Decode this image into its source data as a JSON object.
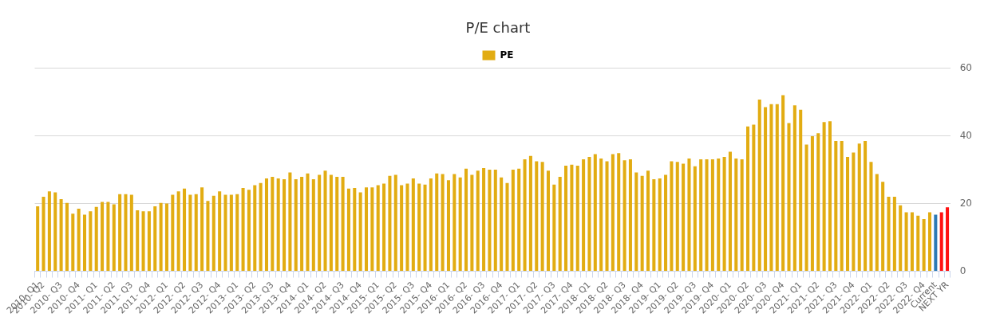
{
  "chart_data": {
    "type": "bar",
    "title": "P/E chart",
    "categories": [
      "2010- Q1",
      "2010- Q2",
      null,
      null,
      "2010- Q3",
      null,
      null,
      "2010- Q4",
      null,
      null,
      "2011- Q1",
      null,
      null,
      "2011- Q2",
      null,
      null,
      "2011- Q3",
      null,
      null,
      "2011- Q4",
      null,
      null,
      "2012- Q1",
      null,
      null,
      "2012- Q2",
      null,
      null,
      "2012- Q3",
      null,
      null,
      "2012- Q4",
      null,
      null,
      "2013- Q1",
      null,
      null,
      "2013- Q2",
      null,
      null,
      "2013- Q3",
      null,
      null,
      "2013- Q4",
      null,
      null,
      "2014- Q1",
      null,
      null,
      "2014- Q2",
      null,
      null,
      "2014- Q3",
      null,
      null,
      "2014- Q4",
      null,
      null,
      "2015- Q1",
      null,
      null,
      "2015- Q2",
      null,
      null,
      "2015- Q3",
      null,
      null,
      "2015- Q4",
      null,
      null,
      "2016- Q1",
      null,
      null,
      "2016- Q2",
      null,
      null,
      "2016- Q3",
      null,
      null,
      "2016- Q4",
      null,
      null,
      "2017- Q1",
      null,
      null,
      "2017- Q2",
      null,
      null,
      "2017- Q3",
      null,
      null,
      "2017- Q4",
      null,
      null,
      "2018- Q1",
      null,
      null,
      "2018- Q2",
      null,
      null,
      "2018- Q3",
      null,
      null,
      "2018- Q4",
      null,
      null,
      "2019- Q1",
      null,
      null,
      "2019- Q2",
      null,
      null,
      "2019- Q3",
      null,
      null,
      "2019- Q4",
      null,
      null,
      "2020- Q1",
      null,
      null,
      "2020- Q2",
      null,
      null,
      "2020- Q3",
      null,
      null,
      "2020- Q4",
      null,
      null,
      "2021- Q1",
      null,
      null,
      "2021- Q2",
      null,
      null,
      "2021- Q3",
      null,
      null,
      "2021- Q4",
      null,
      null,
      "2022- Q1",
      null,
      null,
      "2022- Q2",
      null,
      null,
      "2022- Q3",
      null,
      null,
      "2022- Q4",
      null,
      "Current",
      null,
      "NEXT YR"
    ],
    "series": [
      {
        "name": "PE",
        "color": "#e2ac12",
        "values": [
          19.2,
          22.0,
          23.6,
          23.3,
          21.3,
          20.2,
          17.0,
          18.5,
          16.7,
          17.7,
          19.0,
          20.5,
          20.5,
          19.8,
          22.8,
          22.8,
          22.6,
          18.0,
          17.7,
          17.7,
          19.2,
          20.2,
          20.0,
          22.6,
          23.6,
          24.4,
          22.6,
          22.8,
          24.8,
          20.8,
          22.3,
          23.6,
          22.6,
          22.6,
          22.8,
          24.6,
          24.1,
          25.4,
          26.1,
          27.4,
          27.9,
          27.4,
          27.2,
          29.2,
          27.2,
          27.9,
          28.9,
          27.2,
          28.5,
          29.7,
          28.5,
          27.9,
          27.9,
          24.4,
          24.6,
          23.3,
          24.8,
          24.8,
          25.4,
          25.9,
          28.2,
          28.5,
          25.4,
          25.9,
          27.4,
          25.9,
          25.6,
          27.4,
          28.9,
          28.7,
          26.9,
          28.7,
          27.7,
          30.3,
          28.5,
          29.7,
          30.5,
          30.0,
          30.0,
          27.7,
          26.1,
          30.0,
          30.3,
          33.1,
          34.1,
          32.5,
          32.3,
          29.7,
          25.6,
          27.9,
          31.2,
          31.5,
          31.2,
          33.1,
          33.8,
          34.6,
          33.3,
          32.5,
          34.6,
          34.9,
          32.8,
          33.1,
          29.2,
          28.2,
          29.7,
          27.2,
          27.4,
          28.5,
          32.5,
          32.3,
          31.8,
          33.3,
          31.0,
          33.1,
          33.1,
          33.1,
          33.3,
          33.8,
          35.3,
          33.3,
          33.1,
          42.8,
          43.3,
          50.7,
          48.5,
          49.4,
          49.4,
          52.0,
          43.8,
          49.0,
          47.7,
          37.4,
          39.9,
          40.8,
          44.1,
          44.3,
          38.5,
          38.5,
          33.8,
          35.1,
          37.7,
          38.5,
          32.3,
          28.7,
          26.4,
          22.0,
          22.0,
          19.5,
          17.4,
          17.4,
          16.4,
          15.4,
          17.4,
          16.7,
          17.4,
          18.9
        ],
        "colors": [
          "#e2ac12",
          "#e2ac12",
          "#e2ac12",
          "#e2ac12",
          "#e2ac12",
          "#e2ac12",
          "#e2ac12",
          "#e2ac12",
          "#e2ac12",
          "#e2ac12",
          "#e2ac12",
          "#e2ac12",
          "#e2ac12",
          "#e2ac12",
          "#e2ac12",
          "#e2ac12",
          "#e2ac12",
          "#e2ac12",
          "#e2ac12",
          "#e2ac12",
          "#e2ac12",
          "#e2ac12",
          "#e2ac12",
          "#e2ac12",
          "#e2ac12",
          "#e2ac12",
          "#e2ac12",
          "#e2ac12",
          "#e2ac12",
          "#e2ac12",
          "#e2ac12",
          "#e2ac12",
          "#e2ac12",
          "#e2ac12",
          "#e2ac12",
          "#e2ac12",
          "#e2ac12",
          "#e2ac12",
          "#e2ac12",
          "#e2ac12",
          "#e2ac12",
          "#e2ac12",
          "#e2ac12",
          "#e2ac12",
          "#e2ac12",
          "#e2ac12",
          "#e2ac12",
          "#e2ac12",
          "#e2ac12",
          "#e2ac12",
          "#e2ac12",
          "#e2ac12",
          "#e2ac12",
          "#e2ac12",
          "#e2ac12",
          "#e2ac12",
          "#e2ac12",
          "#e2ac12",
          "#e2ac12",
          "#e2ac12",
          "#e2ac12",
          "#e2ac12",
          "#e2ac12",
          "#e2ac12",
          "#e2ac12",
          "#e2ac12",
          "#e2ac12",
          "#e2ac12",
          "#e2ac12",
          "#e2ac12",
          "#e2ac12",
          "#e2ac12",
          "#e2ac12",
          "#e2ac12",
          "#e2ac12",
          "#e2ac12",
          "#e2ac12",
          "#e2ac12",
          "#e2ac12",
          "#e2ac12",
          "#e2ac12",
          "#e2ac12",
          "#e2ac12",
          "#e2ac12",
          "#e2ac12",
          "#e2ac12",
          "#e2ac12",
          "#e2ac12",
          "#e2ac12",
          "#e2ac12",
          "#e2ac12",
          "#e2ac12",
          "#e2ac12",
          "#e2ac12",
          "#e2ac12",
          "#e2ac12",
          "#e2ac12",
          "#e2ac12",
          "#e2ac12",
          "#e2ac12",
          "#e2ac12",
          "#e2ac12",
          "#e2ac12",
          "#e2ac12",
          "#e2ac12",
          "#e2ac12",
          "#e2ac12",
          "#e2ac12",
          "#e2ac12",
          "#e2ac12",
          "#e2ac12",
          "#e2ac12",
          "#e2ac12",
          "#e2ac12",
          "#e2ac12",
          "#e2ac12",
          "#e2ac12",
          "#e2ac12",
          "#e2ac12",
          "#e2ac12",
          "#e2ac12",
          "#e2ac12",
          "#e2ac12",
          "#e2ac12",
          "#e2ac12",
          "#e2ac12",
          "#e2ac12",
          "#e2ac12",
          "#e2ac12",
          "#e2ac12",
          "#e2ac12",
          "#e2ac12",
          "#e2ac12",
          "#e2ac12",
          "#e2ac12",
          "#e2ac12",
          "#e2ac12",
          "#e2ac12",
          "#e2ac12",
          "#e2ac12",
          "#e2ac12",
          "#e2ac12",
          "#e2ac12",
          "#e2ac12",
          "#e2ac12",
          "#e2ac12",
          "#e2ac12",
          "#e2ac12",
          "#e2ac12",
          "#e2ac12",
          "#e2ac12",
          "#e2ac12",
          "#e2ac12",
          "#2b79b5",
          "#ff1010",
          "#ff1010"
        ]
      }
    ],
    "ylim": [
      0,
      60
    ],
    "yticks": [
      0,
      20,
      40,
      60
    ],
    "grid": "y",
    "legend": "top"
  }
}
